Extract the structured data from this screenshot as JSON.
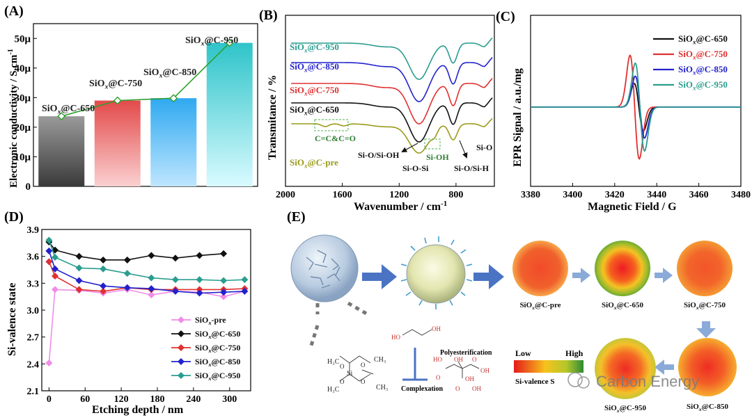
{
  "panels": {
    "A": {
      "label": "(A)",
      "ylabel": "Electronic conductivity / S cm",
      "ylabel_sup": "-1",
      "yticks": [
        "0",
        "10μ",
        "20μ",
        "30μ",
        "40μ",
        "50μ"
      ],
      "bar_labels": [
        {
          "pre": "SiO",
          "sub": "x",
          "post": "@C-650"
        },
        {
          "pre": "SiO",
          "sub": "x",
          "post": "@C-750"
        },
        {
          "pre": "SiO",
          "sub": "x",
          "post": "@C-850"
        },
        {
          "pre": "SiO",
          "sub": "x",
          "post": "@C-950"
        }
      ]
    },
    "B": {
      "label": "(B)",
      "ylabel": "Transmitance / %",
      "xlabel": "Wavenumber / cm",
      "xlabel_sup": "-1",
      "xticks": [
        "2000",
        "1600",
        "1200",
        "800"
      ],
      "series_labels": [
        {
          "pre": "SiO",
          "sub": "x",
          "post": "@C-950"
        },
        {
          "pre": "SiO",
          "sub": "x",
          "post": "@C-850"
        },
        {
          "pre": "SiO",
          "sub": "x",
          "post": "@C-750"
        },
        {
          "pre": "SiO",
          "sub": "x",
          "post": "@C-650"
        },
        {
          "pre": "SiO",
          "sub": "x",
          "post": "@C-pre"
        }
      ],
      "annotations": [
        "C=C&C=O",
        "Si-O/Si-OH",
        "Si-O-Si",
        "Si-OH",
        "Si-O/Si-H",
        "Si-O"
      ]
    },
    "C": {
      "label": "(C)",
      "ylabel": "EPR Signal  / a.u./mg",
      "xlabel": "Magnetic Field / G",
      "xticks": [
        "3380",
        "3400",
        "3420",
        "3440",
        "3460",
        "3480"
      ],
      "legend": [
        {
          "pre": "SiO",
          "sub": "x",
          "post": "@C-650"
        },
        {
          "pre": "SiO",
          "sub": "x",
          "post": "@C-750"
        },
        {
          "pre": "SiO",
          "sub": "x",
          "post": "@C-850"
        },
        {
          "pre": "SiO",
          "sub": "x",
          "post": "@C-950"
        }
      ]
    },
    "D": {
      "label": "(D)",
      "ylabel": "Si-valence state",
      "xlabel": "Etching depth / nm",
      "xticks": [
        "0",
        "60",
        "120",
        "180",
        "240",
        "300"
      ],
      "yticks": [
        "2.1",
        "2.4",
        "2.7",
        "3.0",
        "3.3",
        "3.6",
        "3.9"
      ],
      "legend": [
        {
          "pre": "SiO",
          "sub": "x",
          "post": "-pre"
        },
        {
          "pre": "SiO",
          "sub": "x",
          "post": "@C-650"
        },
        {
          "pre": "SiO",
          "sub": "x",
          "post": "@C-750"
        },
        {
          "pre": "SiO",
          "sub": "x",
          "post": "@C-850"
        },
        {
          "pre": "SiO",
          "sub": "x",
          "post": "@C-950"
        }
      ]
    },
    "E": {
      "label": "(E)",
      "sphere_labels": [
        {
          "pre": "SiO",
          "sub": "x",
          "post": "@C-pre"
        },
        {
          "pre": "SiO",
          "sub": "x",
          "post": "@C-650"
        },
        {
          "pre": "SiO",
          "sub": "x",
          "post": "@C-750"
        },
        {
          "pre": "SiO",
          "sub": "x",
          "post": "@C-850"
        },
        {
          "pre": "SiO",
          "sub": "x",
          "post": "@C-950"
        }
      ],
      "scale_low": "Low",
      "scale_high": "High",
      "scale_title": "Si-valence S",
      "polyesterification": "Polyesterification",
      "complexation": "Complexation",
      "watermark": "Carbon Energy"
    }
  },
  "chart_data": [
    {
      "type": "bar",
      "panel": "A",
      "categories": [
        "SiOx@C-650",
        "SiOx@C-750",
        "SiOx@C-850",
        "SiOx@C-950"
      ],
      "values": [
        2.37e-05,
        2.9e-05,
        2.98e-05,
        4.85e-05
      ],
      "colors": [
        "#6e6e6e",
        "#f08080",
        "#6ec8ff",
        "#7fe3e8"
      ],
      "overlay_line": {
        "color": "#2e9e2e",
        "values": [
          2.37e-05,
          2.9e-05,
          2.98e-05,
          4.85e-05
        ]
      },
      "ylabel": "Electronic conductivity / S cm-1",
      "ylim": [
        0,
        5.5e-05
      ]
    },
    {
      "type": "line",
      "panel": "B",
      "xlabel": "Wavenumber / cm-1",
      "ylabel": "Transmitance / %",
      "xlim": [
        2000,
        530
      ],
      "series": [
        {
          "name": "SiOx@C-950",
          "color": "#2a9d8f"
        },
        {
          "name": "SiOx@C-850",
          "color": "#2222cc"
        },
        {
          "name": "SiOx@C-750",
          "color": "#e03030"
        },
        {
          "name": "SiOx@C-650",
          "color": "#111111"
        },
        {
          "name": "SiOx@C-pre",
          "color": "#9a9a1a"
        }
      ]
    },
    {
      "type": "line",
      "panel": "C",
      "xlabel": "Magnetic Field / G",
      "ylabel": "EPR Signal / a.u./mg",
      "xlim": [
        3380,
        3480
      ],
      "series": [
        {
          "name": "SiOx@C-650",
          "color": "#111111",
          "center": 3431.5,
          "amp": 0.42
        },
        {
          "name": "SiOx@C-750",
          "color": "#e03030",
          "center": 3429.5,
          "amp": 0.92
        },
        {
          "name": "SiOx@C-850",
          "color": "#2222cc",
          "center": 3432.0,
          "amp": 0.55
        },
        {
          "name": "SiOx@C-950",
          "color": "#2a9d8f",
          "center": 3432.0,
          "amp": 0.78
        }
      ]
    },
    {
      "type": "line",
      "panel": "D",
      "xlabel": "Etching depth / nm",
      "ylabel": "Si-valence state",
      "xlim": [
        -12,
        335
      ],
      "ylim": [
        2.1,
        3.9
      ],
      "series": [
        {
          "name": "SiOx-pre",
          "color": "#f08ce8",
          "marker": "diamond",
          "x": [
            0,
            10,
            50,
            90,
            130,
            170,
            210,
            250,
            290,
            325
          ],
          "y": [
            2.41,
            3.23,
            3.22,
            3.19,
            3.23,
            3.17,
            3.21,
            3.2,
            3.15,
            3.21
          ]
        },
        {
          "name": "SiOx@C-650",
          "color": "#111111",
          "marker": "diamond",
          "x": [
            0,
            10,
            50,
            90,
            130,
            170,
            210,
            250,
            290
          ],
          "y": [
            3.76,
            3.67,
            3.6,
            3.56,
            3.56,
            3.61,
            3.58,
            3.61,
            3.63
          ]
        },
        {
          "name": "SiOx@C-750",
          "color": "#e03030",
          "marker": "diamond",
          "x": [
            0,
            10,
            50,
            90,
            130,
            170,
            210,
            250,
            290,
            325
          ],
          "y": [
            3.54,
            3.38,
            3.23,
            3.21,
            3.25,
            3.23,
            3.23,
            3.23,
            3.23,
            3.24
          ]
        },
        {
          "name": "SiOx@C-850",
          "color": "#2222cc",
          "marker": "diamond",
          "x": [
            0,
            10,
            50,
            90,
            130,
            170,
            210,
            250,
            290,
            325
          ],
          "y": [
            3.66,
            3.46,
            3.33,
            3.27,
            3.25,
            3.24,
            3.21,
            3.19,
            3.2,
            3.21
          ]
        },
        {
          "name": "SiOx@C-950",
          "color": "#2a9d8f",
          "marker": "diamond",
          "x": [
            0,
            10,
            50,
            90,
            130,
            170,
            210,
            250,
            290,
            325
          ],
          "y": [
            3.78,
            3.59,
            3.47,
            3.46,
            3.41,
            3.36,
            3.34,
            3.34,
            3.33,
            3.34
          ]
        }
      ]
    }
  ]
}
